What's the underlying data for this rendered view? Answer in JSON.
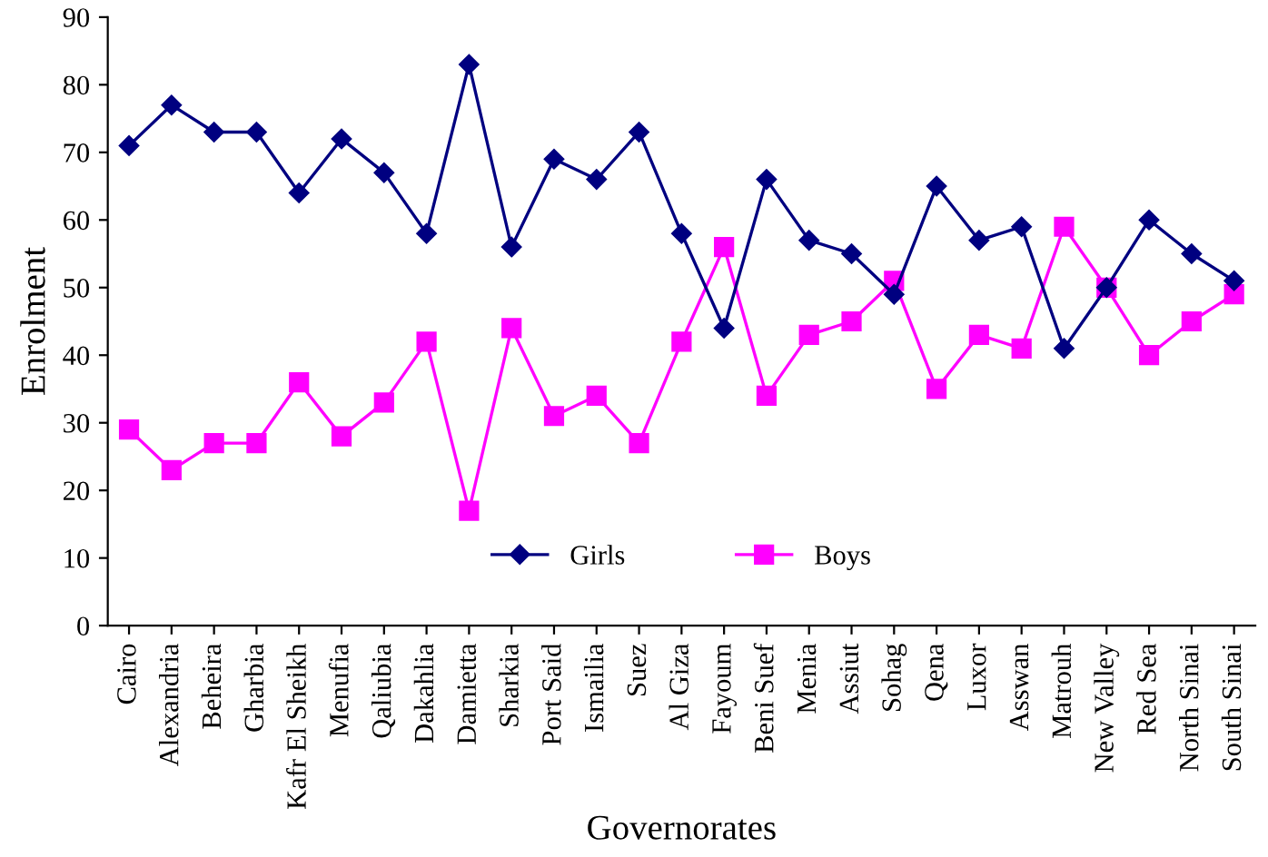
{
  "chart_data": {
    "type": "line",
    "xlabel": "Governorates",
    "ylabel": "Enrolment",
    "categories": [
      "Cairo",
      "Alexandria",
      "Beheira",
      "Gharbia",
      "Kafr El Sheikh",
      "Menufia",
      "Qaliubia",
      "Dakahlia",
      "Damietta",
      "Sharkia",
      "Port Said",
      "Ismailia",
      "Suez",
      "Al Giza",
      "Fayoum",
      "Beni Suef",
      "Menia",
      "Assiut",
      "Sohag",
      "Qena",
      "Luxor",
      "Asswan",
      "Matrouh",
      "New Valley",
      "Red Sea",
      "North Sinai",
      "South Sinai"
    ],
    "series": [
      {
        "name": "Girls",
        "color": "#000080",
        "marker": "diamond",
        "values": [
          71,
          77,
          73,
          73,
          64,
          72,
          67,
          58,
          83,
          56,
          69,
          66,
          73,
          58,
          44,
          66,
          57,
          55,
          49,
          65,
          57,
          59,
          41,
          50,
          60,
          55,
          51
        ]
      },
      {
        "name": "Boys",
        "color": "#ff00ff",
        "marker": "square",
        "values": [
          29,
          23,
          27,
          27,
          36,
          28,
          33,
          42,
          17,
          44,
          31,
          34,
          27,
          42,
          56,
          34,
          43,
          45,
          51,
          35,
          43,
          41,
          59,
          50,
          40,
          45,
          49
        ]
      }
    ],
    "ylim": [
      0,
      90
    ],
    "yticks": [
      0,
      10,
      20,
      30,
      40,
      50,
      60,
      70,
      80,
      90
    ],
    "grid": false,
    "legend": "bottom",
    "line_style": "solid"
  }
}
